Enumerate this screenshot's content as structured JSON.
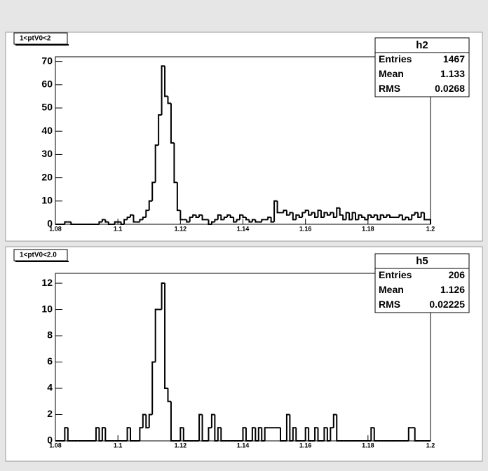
{
  "chart_data": [
    {
      "type": "histogram",
      "title": "1<ptV0<2",
      "stats": {
        "name": "h2",
        "rows": [
          {
            "label": "Entries",
            "value": 1467
          },
          {
            "label": "Mean",
            "value": 1.133
          },
          {
            "label": "RMS",
            "value": 0.0268
          }
        ]
      },
      "bins": [
        1.08,
        1.081,
        1.082,
        1.083,
        1.084,
        1.085,
        1.086,
        1.087,
        1.088,
        1.089,
        1.09,
        1.091,
        1.092,
        1.093,
        1.094,
        1.095,
        1.096,
        1.097,
        1.098,
        1.099,
        1.1,
        1.101,
        1.102,
        1.103,
        1.104,
        1.105,
        1.106,
        1.107,
        1.108,
        1.109,
        1.11,
        1.111,
        1.112,
        1.113,
        1.114,
        1.115,
        1.116,
        1.117,
        1.118,
        1.119,
        1.12,
        1.121,
        1.122,
        1.123,
        1.124,
        1.125,
        1.126,
        1.127,
        1.128,
        1.129,
        1.13,
        1.131,
        1.132,
        1.133,
        1.134,
        1.135,
        1.136,
        1.137,
        1.138,
        1.139,
        1.14,
        1.141,
        1.142,
        1.143,
        1.144,
        1.145,
        1.146,
        1.147,
        1.148,
        1.149,
        1.15,
        1.151,
        1.152,
        1.153,
        1.154,
        1.155,
        1.156,
        1.157,
        1.158,
        1.159,
        1.16,
        1.161,
        1.162,
        1.163,
        1.164,
        1.165,
        1.166,
        1.167,
        1.168,
        1.169,
        1.17,
        1.171,
        1.172,
        1.173,
        1.174,
        1.175,
        1.176,
        1.177,
        1.178,
        1.179,
        1.18,
        1.181,
        1.182,
        1.183,
        1.184,
        1.185,
        1.186,
        1.187,
        1.188,
        1.189,
        1.19,
        1.191,
        1.192,
        1.193,
        1.194,
        1.195,
        1.196,
        1.197,
        1.198,
        1.199,
        1.2
      ],
      "values": [
        0,
        0,
        0,
        1,
        1,
        0,
        0,
        0,
        0,
        0,
        0,
        0,
        0,
        0,
        1,
        2,
        1,
        0,
        0,
        1,
        1,
        0,
        2,
        3,
        4,
        1,
        1,
        2,
        3,
        6,
        10,
        18,
        34,
        47,
        68,
        55,
        52,
        35,
        18,
        6,
        2,
        2,
        1,
        3,
        4,
        3,
        4,
        2,
        2,
        0,
        1,
        2,
        4,
        2,
        3,
        4,
        3,
        1,
        2,
        4,
        3,
        2,
        1,
        2,
        1,
        1,
        2,
        2,
        3,
        1,
        10,
        5,
        5,
        6,
        4,
        5,
        2,
        4,
        3,
        5,
        6,
        4,
        5,
        3,
        6,
        3,
        5,
        4,
        5,
        3,
        7,
        4,
        2,
        5,
        2,
        5,
        2,
        4,
        3,
        2,
        4,
        3,
        4,
        2,
        4,
        3,
        4,
        3,
        3,
        3,
        4,
        2,
        3,
        2,
        4,
        5,
        3,
        5,
        2,
        2
      ],
      "xlim": [
        1.08,
        1.2
      ],
      "xticks": [
        1.08,
        1.1,
        1.12,
        1.14,
        1.16,
        1.18,
        1.2
      ],
      "ylim": [
        0,
        72
      ],
      "yticks": [
        0,
        10,
        20,
        30,
        40,
        50,
        60,
        70
      ],
      "color": "#000000"
    },
    {
      "type": "histogram",
      "title": "1<ptV0<2.0",
      "stats": {
        "name": "h5",
        "rows": [
          {
            "label": "Entries",
            "value": 206
          },
          {
            "label": "Mean",
            "value": 1.126
          },
          {
            "label": "RMS",
            "value": 0.02225
          }
        ]
      },
      "bins": [
        1.08,
        1.081,
        1.082,
        1.083,
        1.084,
        1.085,
        1.086,
        1.087,
        1.088,
        1.089,
        1.09,
        1.091,
        1.092,
        1.093,
        1.094,
        1.095,
        1.096,
        1.097,
        1.098,
        1.099,
        1.1,
        1.101,
        1.102,
        1.103,
        1.104,
        1.105,
        1.106,
        1.107,
        1.108,
        1.109,
        1.11,
        1.111,
        1.112,
        1.113,
        1.114,
        1.115,
        1.116,
        1.117,
        1.118,
        1.119,
        1.12,
        1.121,
        1.122,
        1.123,
        1.124,
        1.125,
        1.126,
        1.127,
        1.128,
        1.129,
        1.13,
        1.131,
        1.132,
        1.133,
        1.134,
        1.135,
        1.136,
        1.137,
        1.138,
        1.139,
        1.14,
        1.141,
        1.142,
        1.143,
        1.144,
        1.145,
        1.146,
        1.147,
        1.148,
        1.149,
        1.15,
        1.151,
        1.152,
        1.153,
        1.154,
        1.155,
        1.156,
        1.157,
        1.158,
        1.159,
        1.16,
        1.161,
        1.162,
        1.163,
        1.164,
        1.165,
        1.166,
        1.167,
        1.168,
        1.169,
        1.17,
        1.171,
        1.172,
        1.173,
        1.174,
        1.175,
        1.176,
        1.177,
        1.178,
        1.179,
        1.18,
        1.181,
        1.182,
        1.183,
        1.184,
        1.185,
        1.186,
        1.187,
        1.188,
        1.189,
        1.19,
        1.191,
        1.192,
        1.193,
        1.194,
        1.195,
        1.196,
        1.197,
        1.198,
        1.199,
        1.2
      ],
      "values": [
        0,
        0,
        0,
        1,
        0,
        0,
        0,
        0,
        0,
        0,
        0,
        0,
        0,
        1,
        0,
        1,
        0,
        0,
        0,
        0,
        0,
        0,
        0,
        1,
        0,
        0,
        0,
        1,
        2,
        1,
        2,
        6,
        10,
        10,
        12,
        4,
        3,
        0,
        0,
        0,
        1,
        0,
        0,
        0,
        0,
        0,
        2,
        0,
        0,
        1,
        2,
        0,
        1,
        0,
        0,
        0,
        0,
        0,
        0,
        0,
        1,
        0,
        0,
        1,
        0,
        1,
        0,
        1,
        1,
        1,
        1,
        1,
        0,
        0,
        2,
        0,
        1,
        0,
        0,
        0,
        1,
        0,
        0,
        1,
        0,
        0,
        1,
        0,
        1,
        2,
        0,
        0,
        0,
        0,
        0,
        0,
        0,
        0,
        0,
        0,
        0,
        1,
        0,
        0,
        0,
        0,
        0,
        0,
        0,
        0,
        0,
        0,
        0,
        1,
        1,
        0,
        0,
        0,
        0,
        0
      ],
      "xlim": [
        1.08,
        1.2
      ],
      "xticks": [
        1.08,
        1.1,
        1.12,
        1.14,
        1.16,
        1.18,
        1.2
      ],
      "ylim": [
        0,
        12.75
      ],
      "yticks": [
        0,
        2,
        4,
        6,
        8,
        10,
        12
      ],
      "color": "#000000"
    }
  ]
}
